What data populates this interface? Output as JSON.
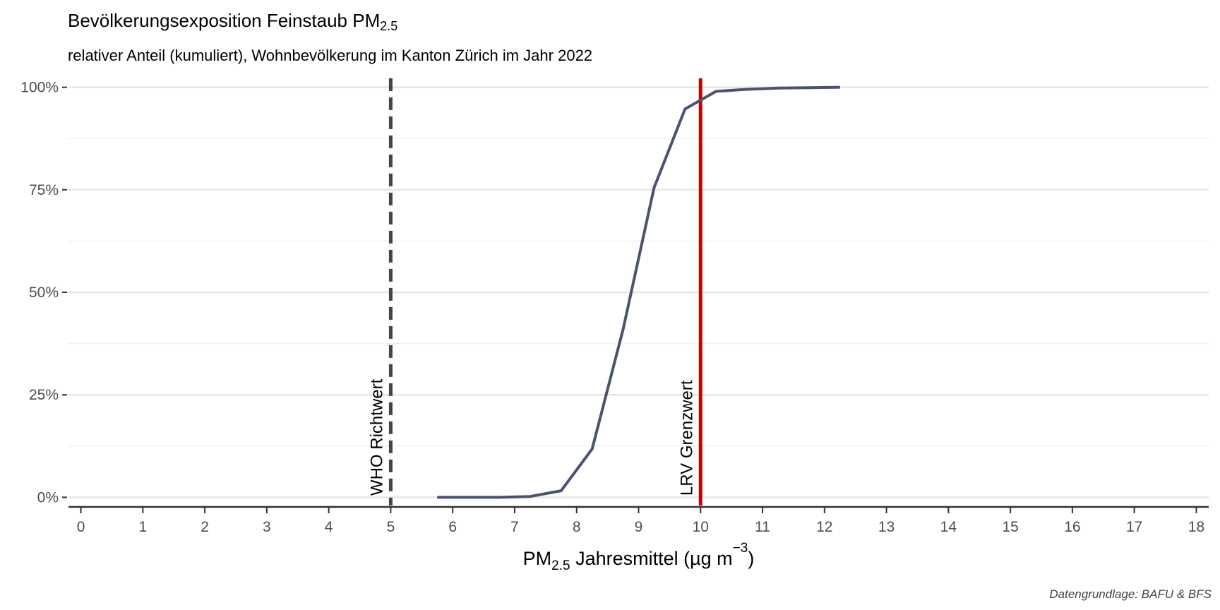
{
  "chart_data": {
    "type": "line",
    "title_main": "Bevölkerungsexposition Feinstaub PM",
    "title_sub": "2.5",
    "subtitle": "relativer Anteil (kumuliert), Wohnbevölkerung im Kanton Zürich im Jahr 2022",
    "xlabel_main": "PM",
    "xlabel_sub": "2.5",
    "xlabel_rest": " Jahresmittel (µg m",
    "xlabel_sup": "−3",
    "xlabel_end": ")",
    "caption": "Datengrundlage: BAFU & BFS",
    "xlim": [
      -0.2,
      18.2
    ],
    "ylim": [
      -0.02,
      1.02
    ],
    "x_ticks": [
      0,
      1,
      2,
      3,
      4,
      5,
      6,
      7,
      8,
      9,
      10,
      11,
      12,
      13,
      14,
      15,
      16,
      17,
      18
    ],
    "x_tick_labels": [
      "0",
      "1",
      "2",
      "3",
      "4",
      "5",
      "6",
      "7",
      "8",
      "9",
      "10",
      "11",
      "12",
      "13",
      "14",
      "15",
      "16",
      "17",
      "18"
    ],
    "y_ticks": [
      0,
      0.25,
      0.5,
      0.75,
      1.0
    ],
    "y_tick_labels": [
      "0%",
      "25%",
      "50%",
      "75%",
      "100%"
    ],
    "grid": true,
    "series": [
      {
        "color": "#4a5270",
        "x": [
          5.75,
          6.25,
          6.75,
          7.25,
          7.75,
          8.25,
          8.75,
          9.25,
          9.75,
          10.25,
          10.75,
          11.25,
          11.75,
          12.25
        ],
        "y": [
          0.0,
          0.0,
          0.0,
          0.002,
          0.016,
          0.118,
          0.41,
          0.755,
          0.947,
          0.99,
          0.995,
          0.998,
          0.999,
          1.0
        ]
      }
    ],
    "reference_lines": [
      {
        "x": 5,
        "label": "WHO Richtwert",
        "color": "#444444",
        "dashed": true
      },
      {
        "x": 10,
        "label": "LRV Grenzwert",
        "color": "#c80000",
        "dashed": false
      }
    ]
  }
}
